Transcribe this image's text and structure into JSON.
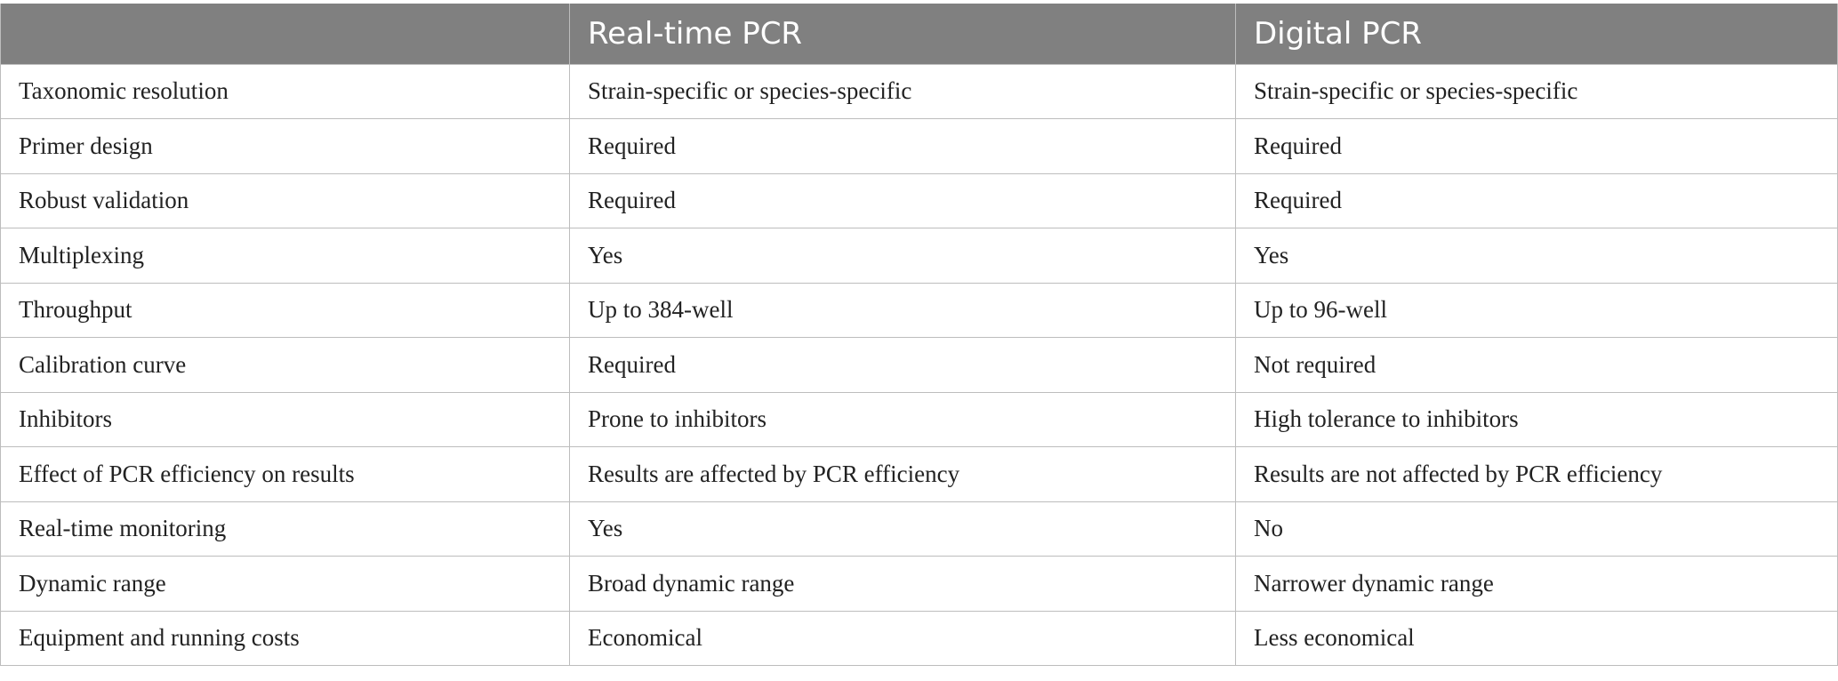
{
  "table": {
    "headers": [
      "",
      "Real-time PCR",
      "Digital PCR"
    ],
    "rows": [
      [
        "Taxonomic resolution",
        "Strain-specific or species-specific",
        "Strain-specific or species-specific"
      ],
      [
        "Primer design",
        "Required",
        "Required"
      ],
      [
        "Robust validation",
        "Required",
        "Required"
      ],
      [
        "Multiplexing",
        "Yes",
        "Yes"
      ],
      [
        "Throughput",
        "Up to 384-well",
        "Up to 96-well"
      ],
      [
        "Calibration curve",
        "Required",
        "Not required"
      ],
      [
        "Inhibitors",
        "Prone to inhibitors",
        "High tolerance to inhibitors"
      ],
      [
        "Effect of PCR efficiency on results",
        "Results are affected by PCR efficiency",
        "Results are not affected by PCR efficiency"
      ],
      [
        "Real-time monitoring",
        "Yes",
        "No"
      ],
      [
        "Dynamic range",
        "Broad dynamic range",
        "Narrower dynamic range"
      ],
      [
        "Equipment and running costs",
        "Economical",
        "Less economical"
      ]
    ]
  },
  "colors": {
    "header_bg": "#808080",
    "header_text": "#ffffff",
    "border": "#bdbdbd"
  }
}
